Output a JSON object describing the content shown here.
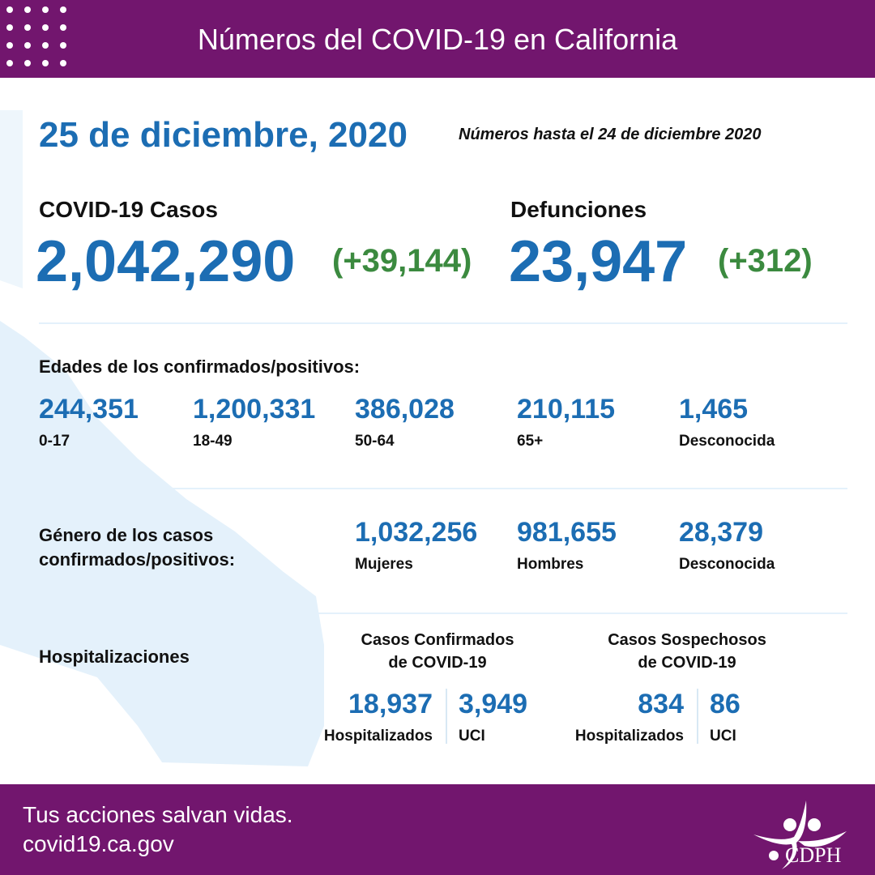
{
  "header": {
    "title": "Números del COVID-19 en California"
  },
  "date": "25 de diciembre, 2020",
  "as_of": "Números hasta el 24 de diciembre 2020",
  "cases": {
    "label": "COVID-19 Casos",
    "total": "2,042,290",
    "change": "(+39,144)"
  },
  "deaths": {
    "label": "Defunciones",
    "total": "23,947",
    "change": "(+312)"
  },
  "ages": {
    "title": "Edades de los confirmados/positivos:",
    "items": [
      {
        "value": "244,351",
        "label": "0-17"
      },
      {
        "value": "1,200,331",
        "label": "18-49"
      },
      {
        "value": "386,028",
        "label": "50-64"
      },
      {
        "value": "210,115",
        "label": "65+"
      },
      {
        "value": "1,465",
        "label": "Desconocida"
      }
    ]
  },
  "gender": {
    "title_line1": "Género de los casos",
    "title_line2": "confirmados/positivos:",
    "items": [
      {
        "value": "1,032,256",
        "label": "Mujeres"
      },
      {
        "value": "981,655",
        "label": "Hombres"
      },
      {
        "value": "28,379",
        "label": "Desconocida"
      }
    ]
  },
  "hosp": {
    "title": "Hospitalizaciones",
    "confirmed": {
      "title_line1": "Casos Confirmados",
      "title_line2": "de COVID-19",
      "hospitalized": "18,937",
      "hospitalized_label": "Hospitalizados",
      "icu": "3,949",
      "icu_label": "UCI"
    },
    "suspected": {
      "title_line1": "Casos Sospechosos",
      "title_line2": "de COVID-19",
      "hospitalized": "834",
      "hospitalized_label": "Hospitalizados",
      "icu": "86",
      "icu_label": "UCI"
    }
  },
  "footer": {
    "slogan": "Tus acciones salvan vidas.",
    "url": "covid19.ca.gov",
    "logo_text": "CDPH"
  },
  "colors": {
    "purple": "#72166e",
    "blue": "#1c6db3",
    "green": "#3b8a3f",
    "map": "#e4f1fb"
  }
}
